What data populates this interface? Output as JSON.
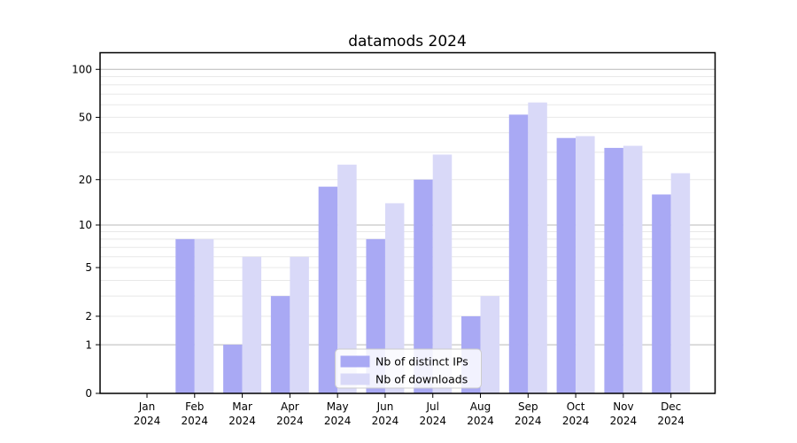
{
  "chart_data": {
    "type": "bar",
    "title": "datamods 2024",
    "categories": [
      "Jan 2024",
      "Feb 2024",
      "Mar 2024",
      "Apr 2024",
      "May 2024",
      "Jun 2024",
      "Jul 2024",
      "Aug 2024",
      "Sep 2024",
      "Oct 2024",
      "Nov 2024",
      "Dec 2024"
    ],
    "series": [
      {
        "name": "Nb of distinct IPs",
        "color": "#a9a9f4",
        "values": [
          0,
          8,
          1,
          3,
          18,
          8,
          20,
          2,
          52,
          37,
          32,
          16
        ]
      },
      {
        "name": "Nb of downloads",
        "color": "#d9d9f8",
        "values": [
          0,
          8,
          6,
          6,
          25,
          14,
          29,
          3,
          62,
          38,
          33,
          22
        ]
      }
    ],
    "xlabel": "",
    "ylabel": "",
    "yscale": "log1p",
    "ylim": [
      0,
      127
    ],
    "yticks_labeled": [
      0,
      1,
      2,
      5,
      10,
      20,
      50,
      100
    ],
    "gridlines_major": [
      1,
      10,
      100
    ],
    "gridlines_minor": [
      2,
      3,
      4,
      5,
      6,
      7,
      8,
      9,
      20,
      30,
      40,
      50,
      60,
      70,
      80,
      90
    ],
    "legend": {
      "position": "lower center",
      "entries": [
        "Nb of distinct IPs",
        "Nb of downloads"
      ]
    },
    "colors": {
      "grid_major": "#b9b9b9",
      "grid_minor": "#e8e8e8",
      "spine": "#000000",
      "background": "#ffffff",
      "legend_border": "#cccccc",
      "legend_fill": "rgba(255,255,255,0.85)"
    }
  }
}
